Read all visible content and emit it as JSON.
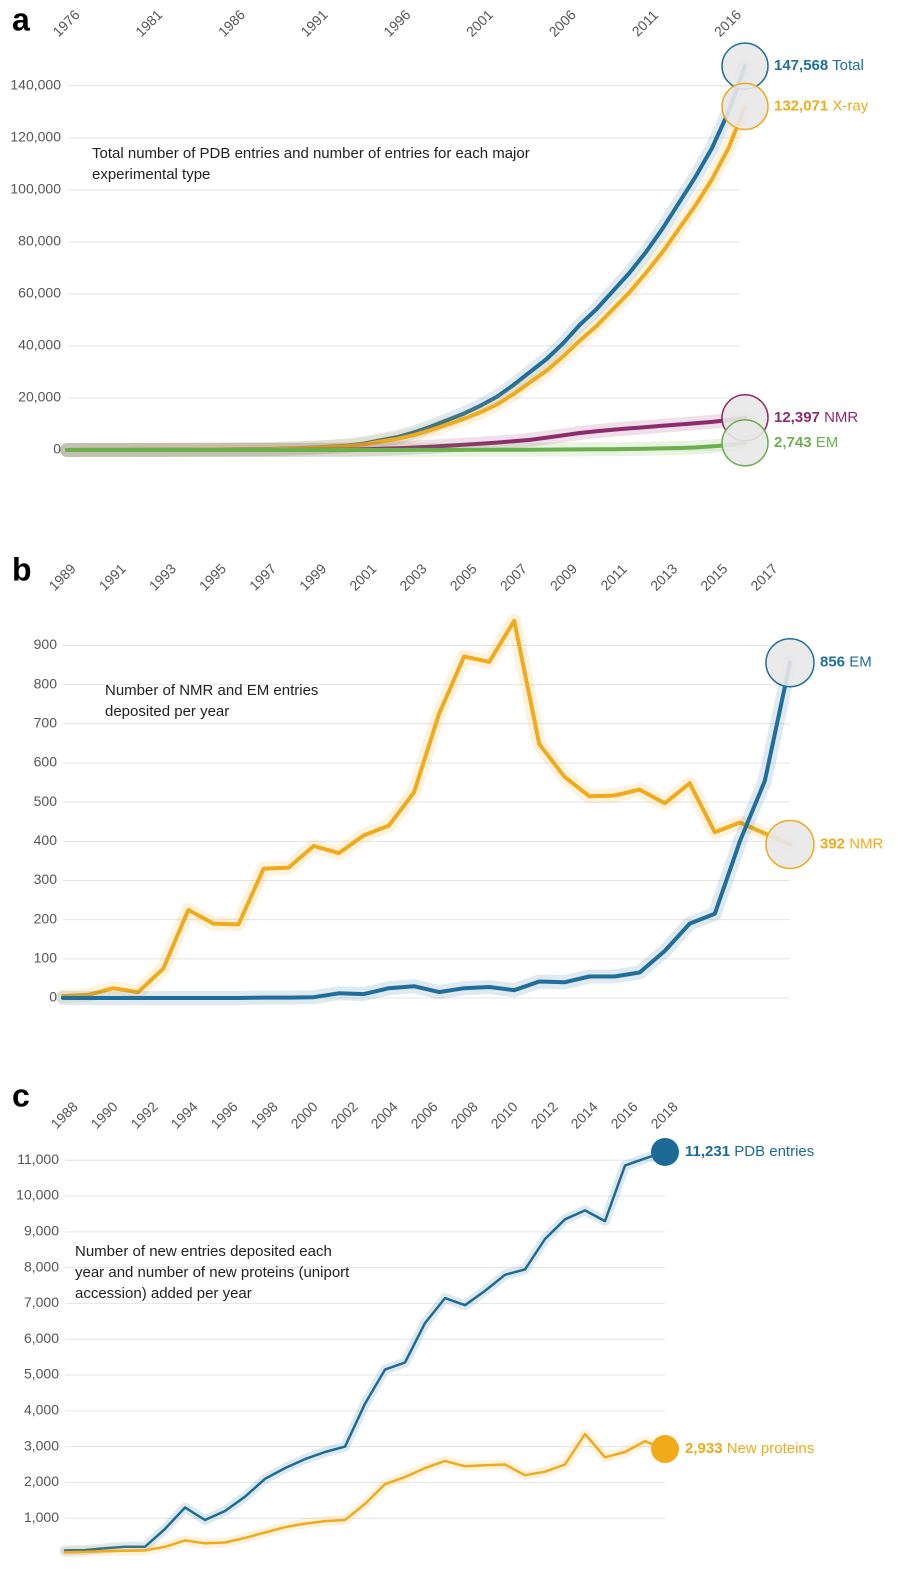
{
  "chart_data": [
    {
      "type": "line",
      "panel": "a",
      "annotation": "Total number of PDB entries and number of entries for each major experimental type",
      "x": [
        1976,
        1977,
        1978,
        1979,
        1980,
        1981,
        1982,
        1983,
        1984,
        1985,
        1986,
        1987,
        1988,
        1989,
        1990,
        1991,
        1992,
        1993,
        1994,
        1995,
        1996,
        1997,
        1998,
        1999,
        2000,
        2001,
        2002,
        2003,
        2004,
        2005,
        2006,
        2007,
        2008,
        2009,
        2010,
        2011,
        2012,
        2013,
        2014,
        2015,
        2016,
        2017
      ],
      "xlim": [
        1976,
        2017
      ],
      "xticks": [
        1976,
        1981,
        1986,
        1991,
        1996,
        2001,
        2006,
        2011,
        2016
      ],
      "ylim": [
        0,
        148000
      ],
      "yticks": [
        0,
        {
          "value": 20000,
          "label": "20,000"
        },
        {
          "value": 40000,
          "label": "40,000"
        },
        {
          "value": 60000,
          "label": "60,000"
        },
        {
          "value": 80000,
          "label": "80,000"
        },
        {
          "value": 100000,
          "label": "100,000"
        },
        {
          "value": 120000,
          "label": "120,000"
        },
        {
          "value": 140000,
          "label": "140,000"
        }
      ],
      "grid": true,
      "series": [
        {
          "name": "Total",
          "color": "#1f6e9c",
          "values": [
            13,
            20,
            40,
            50,
            69,
            90,
            120,
            150,
            180,
            200,
            230,
            270,
            330,
            450,
            650,
            950,
            1300,
            1700,
            2500,
            3800,
            5000,
            6800,
            9000,
            11500,
            14000,
            17000,
            20500,
            25000,
            30000,
            35000,
            41000,
            48000,
            54000,
            61000,
            68000,
            76000,
            85000,
            95000,
            105000,
            116000,
            130000,
            147568
          ],
          "value_labels": [
            null,
            null,
            null,
            null,
            null,
            null,
            null,
            null,
            null,
            null,
            null,
            null,
            null,
            null,
            null,
            null,
            null,
            null,
            null,
            null,
            null,
            null,
            null,
            null,
            null,
            null,
            null,
            null,
            null,
            null,
            null,
            null,
            null,
            null,
            null,
            null,
            null,
            null,
            null,
            null,
            null,
            "147,568"
          ]
        },
        {
          "name": "X-ray",
          "color": "#f0aa1a",
          "values": [
            13,
            20,
            40,
            50,
            69,
            90,
            120,
            150,
            180,
            200,
            230,
            270,
            320,
            430,
            610,
            880,
            1200,
            1550,
            2200,
            3300,
            4300,
            5800,
            7700,
            9800,
            12000,
            14500,
            17500,
            21500,
            26000,
            30500,
            36000,
            42000,
            47500,
            54000,
            60500,
            68000,
            76000,
            85000,
            94000,
            104000,
            116000,
            132071
          ],
          "value_labels": [
            null,
            null,
            null,
            null,
            null,
            null,
            null,
            null,
            null,
            null,
            null,
            null,
            null,
            null,
            null,
            null,
            null,
            null,
            null,
            null,
            null,
            null,
            null,
            null,
            null,
            null,
            null,
            null,
            null,
            null,
            null,
            null,
            null,
            null,
            null,
            null,
            null,
            null,
            null,
            null,
            null,
            "132,071"
          ]
        },
        {
          "name": "NMR",
          "color": "#8e2b6e",
          "values": [
            0,
            0,
            0,
            0,
            0,
            0,
            0,
            0,
            0,
            0,
            0,
            0,
            5,
            15,
            35,
            60,
            90,
            140,
            280,
            460,
            640,
            960,
            1260,
            1640,
            2000,
            2400,
            2850,
            3350,
            3900,
            4750,
            5600,
            6550,
            7200,
            7800,
            8300,
            8800,
            9300,
            9800,
            10300,
            10800,
            11500,
            12397
          ],
          "value_labels": [
            null,
            null,
            null,
            null,
            null,
            null,
            null,
            null,
            null,
            null,
            null,
            null,
            null,
            null,
            null,
            null,
            null,
            null,
            null,
            null,
            null,
            null,
            null,
            null,
            null,
            null,
            null,
            null,
            null,
            null,
            null,
            null,
            null,
            null,
            null,
            null,
            null,
            null,
            null,
            null,
            null,
            "12,397"
          ]
        },
        {
          "name": "EM",
          "color": "#6ab04c",
          "values": [
            0,
            0,
            0,
            0,
            0,
            0,
            0,
            0,
            0,
            0,
            0,
            0,
            0,
            0,
            0,
            1,
            2,
            4,
            6,
            10,
            14,
            20,
            30,
            40,
            50,
            65,
            80,
            100,
            125,
            150,
            180,
            220,
            260,
            320,
            400,
            500,
            620,
            760,
            1000,
            1400,
            1900,
            2743
          ],
          "value_labels": [
            null,
            null,
            null,
            null,
            null,
            null,
            null,
            null,
            null,
            null,
            null,
            null,
            null,
            null,
            null,
            null,
            null,
            null,
            null,
            null,
            null,
            null,
            null,
            null,
            null,
            null,
            null,
            null,
            null,
            null,
            null,
            null,
            null,
            null,
            null,
            null,
            null,
            null,
            null,
            null,
            null,
            "2,743"
          ]
        }
      ]
    },
    {
      "type": "line",
      "panel": "b",
      "annotation": "Number of NMR and EM entries deposited per year",
      "x": [
        1989,
        1990,
        1991,
        1992,
        1993,
        1994,
        1995,
        1996,
        1997,
        1998,
        1999,
        2000,
        2001,
        2002,
        2003,
        2004,
        2005,
        2006,
        2007,
        2008,
        2009,
        2010,
        2011,
        2012,
        2013,
        2014,
        2015,
        2016,
        2017,
        2018
      ],
      "xlim": [
        1989,
        2018
      ],
      "xticks": [
        1989,
        1991,
        1993,
        1995,
        1997,
        1999,
        2001,
        2003,
        2005,
        2007,
        2009,
        2011,
        2013,
        2015,
        2017
      ],
      "ylim": [
        0,
        965
      ],
      "yticks": [
        0,
        100,
        200,
        300,
        400,
        500,
        600,
        700,
        800,
        900
      ],
      "grid": true,
      "series": [
        {
          "name": "NMR",
          "color": "#f0aa1a",
          "values": [
            5,
            8,
            25,
            15,
            75,
            225,
            190,
            188,
            330,
            333,
            388,
            370,
            415,
            440,
            525,
            725,
            872,
            858,
            963,
            648,
            565,
            515,
            517,
            532,
            497,
            548,
            423,
            448,
            420,
            392
          ]
        },
        {
          "name": "EM",
          "color": "#1f6e9c",
          "values": [
            0,
            0,
            0,
            0,
            0,
            0,
            0,
            0,
            1,
            1,
            2,
            12,
            10,
            25,
            30,
            15,
            25,
            28,
            20,
            42,
            40,
            55,
            55,
            65,
            120,
            190,
            215,
            400,
            555,
            856
          ]
        }
      ]
    },
    {
      "type": "line",
      "panel": "c",
      "annotation": "Number of new entries deposited each year and number of new proteins (uniport accession) added per year",
      "x": [
        1988,
        1989,
        1990,
        1991,
        1992,
        1993,
        1994,
        1995,
        1996,
        1997,
        1998,
        1999,
        2000,
        2001,
        2002,
        2003,
        2004,
        2005,
        2006,
        2007,
        2008,
        2009,
        2010,
        2011,
        2012,
        2013,
        2014,
        2015,
        2016,
        2017,
        2018
      ],
      "xlim": [
        1988,
        2018
      ],
      "xticks": [
        1988,
        1990,
        1992,
        1994,
        1996,
        1998,
        2000,
        2002,
        2004,
        2006,
        2008,
        2010,
        2012,
        2014,
        2016,
        2018
      ],
      "ylim": [
        0,
        11300
      ],
      "yticks": [
        {
          "value": 1000,
          "label": "1,000"
        },
        {
          "value": 2000,
          "label": "2,000"
        },
        {
          "value": 3000,
          "label": "3,000"
        },
        {
          "value": 4000,
          "label": "4,000"
        },
        {
          "value": 5000,
          "label": "5,000"
        },
        {
          "value": 6000,
          "label": "6,000"
        },
        {
          "value": 7000,
          "label": "7,000"
        },
        {
          "value": 8000,
          "label": "8,000"
        },
        {
          "value": 9000,
          "label": "9,000"
        },
        {
          "value": 10000,
          "label": "10,000"
        },
        {
          "value": 11000,
          "label": "11,000"
        }
      ],
      "grid": true,
      "series": [
        {
          "name": "PDB entries",
          "color": "#1c6a96",
          "values": [
            100,
            110,
            160,
            200,
            200,
            700,
            1300,
            950,
            1200,
            1600,
            2100,
            2400,
            2650,
            2850,
            3000,
            4200,
            5150,
            5350,
            6450,
            7150,
            6950,
            7350,
            7800,
            7950,
            8800,
            9350,
            9600,
            9300,
            10850,
            11050,
            11231
          ],
          "value_labels": [
            null,
            null,
            null,
            null,
            null,
            null,
            null,
            null,
            null,
            null,
            null,
            null,
            null,
            null,
            null,
            null,
            null,
            null,
            null,
            null,
            null,
            null,
            null,
            null,
            null,
            null,
            null,
            null,
            null,
            null,
            "11,231"
          ]
        },
        {
          "name": "New proteins",
          "color": "#f0aa1a",
          "values": [
            50,
            60,
            80,
            90,
            100,
            200,
            380,
            300,
            320,
            450,
            600,
            750,
            850,
            920,
            950,
            1400,
            1950,
            2150,
            2400,
            2600,
            2450,
            2480,
            2500,
            2200,
            2300,
            2500,
            3350,
            2700,
            2850,
            3150,
            2933
          ],
          "value_labels": [
            null,
            null,
            null,
            null,
            null,
            null,
            null,
            null,
            null,
            null,
            null,
            null,
            null,
            null,
            null,
            null,
            null,
            null,
            null,
            null,
            null,
            null,
            null,
            null,
            null,
            null,
            null,
            null,
            null,
            null,
            "2,933"
          ]
        }
      ]
    }
  ]
}
